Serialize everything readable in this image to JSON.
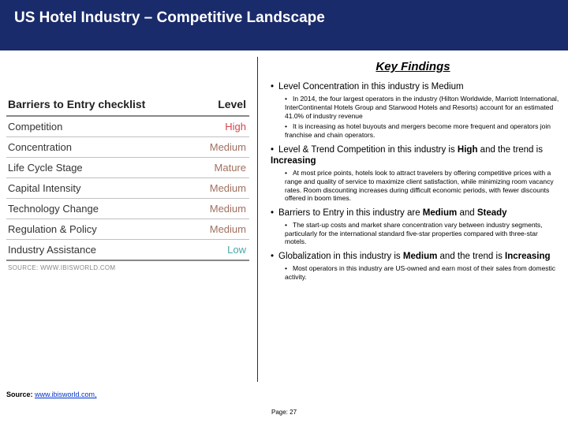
{
  "title": "US Hotel Industry – Competitive Landscape",
  "checklist": {
    "header_left": "Barriers to Entry checklist",
    "header_right": "Level",
    "rows": [
      {
        "label": "Competition",
        "value": "High",
        "color": "#d9434e"
      },
      {
        "label": "Concentration",
        "value": "Medium",
        "color": "#a07060"
      },
      {
        "label": "Life Cycle Stage",
        "value": "Mature",
        "color": "#a07060"
      },
      {
        "label": "Capital Intensity",
        "value": "Medium",
        "color": "#a07060"
      },
      {
        "label": "Technology Change",
        "value": "Medium",
        "color": "#a07060"
      },
      {
        "label": "Regulation & Policy",
        "value": "Medium",
        "color": "#a07060"
      },
      {
        "label": "Industry Assistance",
        "value": "Low",
        "color": "#4aa6a6"
      }
    ],
    "source_line": "SOURCE: WWW.IBISWORLD.COM"
  },
  "key_findings_heading": "Key Findings",
  "findings": {
    "f1": "Level Concentration in this industry is Medium",
    "f1a": "In 2014, the four largest operators in the industry (Hilton Worldwide, Marriott International, InterContinental Hotels Group and Starwood Hotels and Resorts) account for an estimated 41.0% of industry revenue",
    "f1b": "It is increasing as hotel buyouts and mergers become more frequent and operators join franchise and chain operators.",
    "f2_pre": "Level & Trend Competition in this industry is ",
    "f2_b1": "High",
    "f2_mid": " and the trend is ",
    "f2_b2": "Increasing",
    "f2a": "At most price points, hotels look to attract travelers by offering competitive prices with a range and quality of service to maximize client satisfaction, while minimizing room vacancy rates. Room discounting increases during difficult economic periods, with fewer discounts offered in boom times.",
    "f3_pre": "Barriers to Entry in this industry are ",
    "f3_b1": "Medium",
    "f3_mid": " and ",
    "f3_b2": "Steady",
    "f3a": "The start-up costs and market share concentration vary between industry segments, particularly for the international standard five-star properties compared with three-star motels.",
    "f4_pre": "Globalization in this industry is ",
    "f4_b1": "Medium",
    "f4_mid": " and the trend is ",
    "f4_b2": "Increasing",
    "f4a": "Most operators in this industry are US-owned and earn most of their sales from domestic activity."
  },
  "footer": {
    "source_label": "Source: ",
    "source_link": "www.ibisworld.com,",
    "page": "Page: 27"
  },
  "colors": {
    "title_bg": "#1a2b6b",
    "divider": "#1a2b6b"
  }
}
